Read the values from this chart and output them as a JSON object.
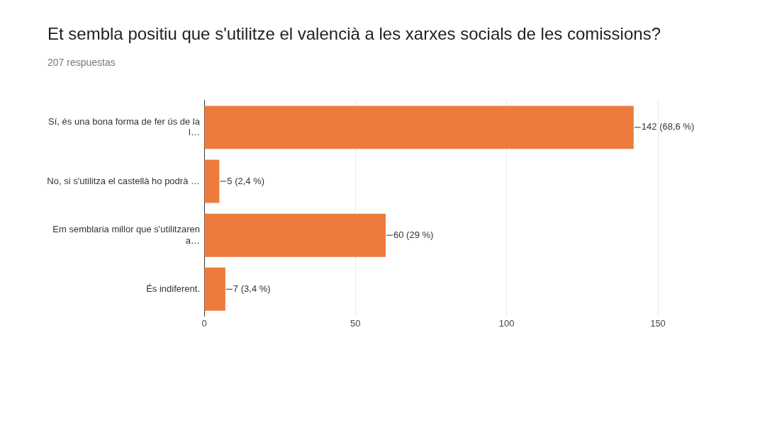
{
  "chart_data": {
    "type": "bar",
    "orientation": "horizontal",
    "title": "Et sembla positiu que s'utilitze el valencià a les xarxes socials de les comissions?",
    "subtitle": "207 respuestas",
    "categories": [
      "Sí, és una bona forma de fer ús de la l…",
      "No, si s'utilitza el castellà ho podrà …",
      "Em semblaria millor que s'utilitzaren a…",
      "És indiferent."
    ],
    "values": [
      142,
      5,
      60,
      7
    ],
    "color": "#ee7b3e",
    "value_labels": [
      "142 (68,6 %)",
      "5 (2,4 %)",
      "60 (29 %)",
      "7 (3,4 %)"
    ],
    "xlim": [
      0,
      150
    ],
    "xticks": [
      0,
      50,
      100,
      150
    ],
    "grid": "x"
  }
}
